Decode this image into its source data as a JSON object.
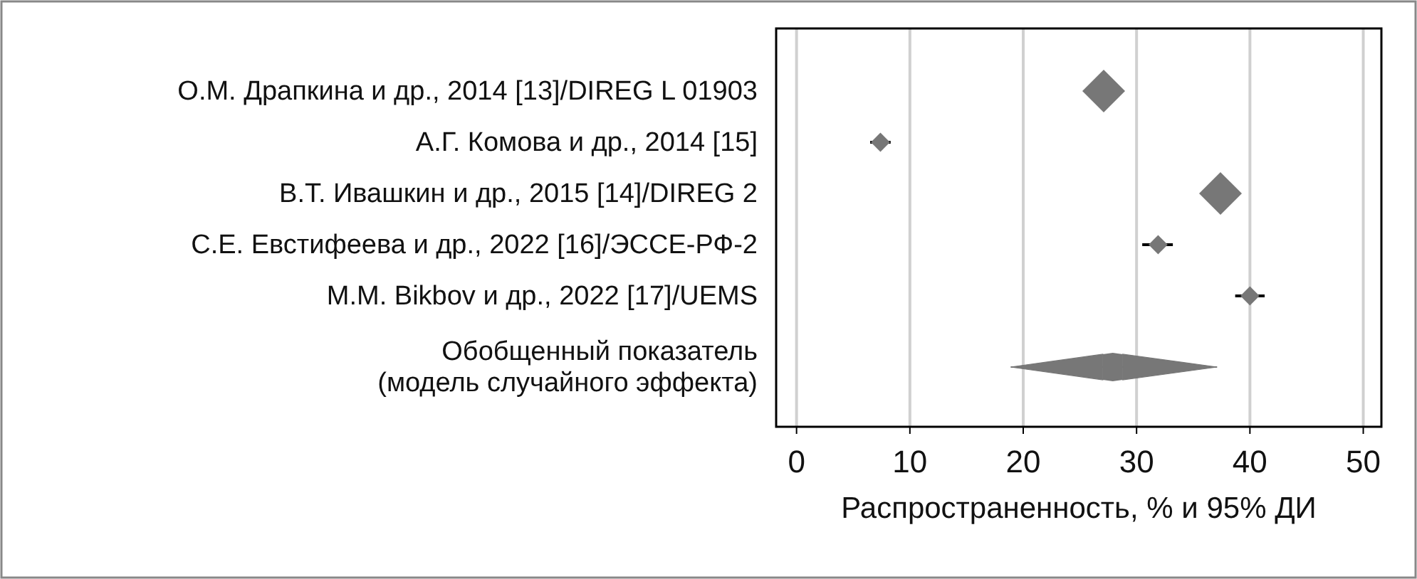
{
  "chart_data": {
    "type": "bubble",
    "orientation": "horizontal",
    "xlabel": "Распространенность, % и 95% ДИ",
    "categories": [
      "О.М. Драпкина и др., 2014 [13]/DIREG L 01903",
      "А.Г. Комова и др., 2014 [15]",
      "В.Т. Ивашкин и др., 2015 [14]/DIREG 2",
      "С.Е. Евстифеева и др., 2022 [16]/ЭССЕ-РФ-2",
      "M.M. Bikbov и др., 2022 [17]/UEMS",
      "Обобщенный показатель\n(модель случайного эффекта)"
    ],
    "series": [
      {
        "type": "bubble",
        "color": "#777777",
        "values": [
          27.1,
          7.4,
          37.4,
          31.9,
          40.0,
          null
        ],
        "sizes": [
          1,
          0.2,
          1,
          0.2,
          0.2,
          null
        ],
        "errors": [
          null,
          [
            6.5,
            8.3
          ],
          null,
          [
            30.5,
            33.2
          ],
          [
            38.7,
            41.3
          ],
          null
        ]
      },
      {
        "type": "scatter",
        "marker": "diamond",
        "color": "#777777",
        "values": [
          null,
          null,
          null,
          null,
          null,
          27.9
        ],
        "errors": [
          null,
          null,
          null,
          null,
          null,
          [
            18.9,
            37.1
          ]
        ]
      }
    ],
    "marker": "diamond",
    "xlim": [
      -1.8,
      51.6
    ],
    "xticks": [
      0,
      10,
      20,
      30,
      40,
      50
    ],
    "grid": "x"
  }
}
